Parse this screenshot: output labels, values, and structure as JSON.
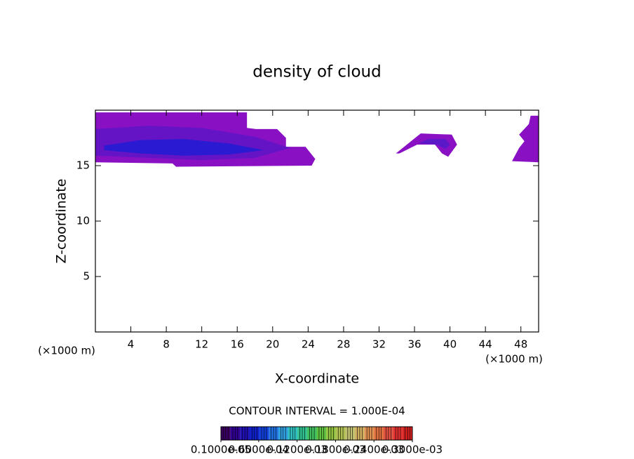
{
  "chart_data": {
    "type": "contour",
    "title": "density of cloud",
    "xlabel": "X-coordinate",
    "ylabel": "Z-coordinate",
    "xunit": "(×1000 m)",
    "yunit": "(×1000 m)",
    "xlim": [
      0,
      50
    ],
    "ylim": [
      0,
      20
    ],
    "xticks": [
      4,
      8,
      12,
      16,
      20,
      24,
      28,
      32,
      36,
      40,
      44,
      48
    ],
    "yticks": [
      5,
      10,
      15
    ],
    "regions": [
      {
        "color": "#8a10c4",
        "x": [
          0,
          17.1,
          17.1,
          18.1,
          20.5,
          21.5,
          21.5,
          23.7,
          24.8,
          24.4,
          9.1,
          8.7,
          0
        ],
        "z": [
          19.8,
          19.8,
          18.4,
          18.3,
          18.3,
          17.5,
          16.7,
          16.7,
          15.6,
          15,
          14.9,
          15.2,
          15.3
        ]
      },
      {
        "color": "#6414c4",
        "x": [
          0,
          6,
          12,
          18,
          22,
          18,
          12,
          6,
          0
        ],
        "z": [
          18.3,
          18.6,
          18.4,
          17.6,
          16.6,
          15.7,
          15.5,
          15.7,
          15.9
        ]
      },
      {
        "color": "#2a1ad2",
        "x": [
          1,
          5,
          10,
          15,
          19,
          15,
          10,
          5,
          1
        ],
        "z": [
          16.8,
          17.3,
          17.4,
          17,
          16.4,
          16,
          15.9,
          16.1,
          16.4
        ]
      },
      {
        "color": "#8a10c4",
        "x": [
          33.9,
          36.7,
          40.2,
          40.8,
          39.8,
          39.1,
          38.3,
          36.3,
          34.3
        ],
        "z": [
          16.1,
          17.9,
          17.8,
          16.9,
          15.8,
          16.1,
          16.9,
          16.9,
          16.1
        ]
      },
      {
        "color": "#5a18c8",
        "x": [
          35.5,
          37.5,
          39.5,
          40,
          39.5,
          38.5,
          36.5
        ],
        "z": [
          16.6,
          17.4,
          17.4,
          16.9,
          16.5,
          16.9,
          17
        ]
      },
      {
        "color": "#8a10c4",
        "x": [
          47.8,
          48.9,
          49.1,
          50,
          50,
          47,
          47.8,
          48.4
        ],
        "z": [
          17.8,
          18.75,
          19.5,
          19.5,
          15.3,
          15.4,
          16.6,
          17.2
        ]
      }
    ],
    "contour_interval": "CONTOUR INTERVAL = 1.000E-04",
    "colorbar": {
      "lim": [
        1e-06,
        0.0003
      ],
      "colors": [
        "#3a0060",
        "#300090",
        "#2010b0",
        "#1020c8",
        "#1040d8",
        "#2070e0",
        "#30a0e0",
        "#30c0c0",
        "#30c090",
        "#40c060",
        "#60c040",
        "#90c040",
        "#b0c050",
        "#c0c070",
        "#d0b060",
        "#e09050",
        "#e07040",
        "#e05040",
        "#e03030",
        "#d02020"
      ],
      "ticks": [
        {
          "value": 1e-06,
          "label": "0.1000e-05"
        },
        {
          "value": 6e-05,
          "label": "0.6000e-04"
        },
        {
          "value": 0.00012,
          "label": "0.1200e-03"
        },
        {
          "value": 0.00018,
          "label": "0.1800e-03"
        },
        {
          "value": 0.00024,
          "label": "0.2400e-03"
        },
        {
          "value": 0.0003,
          "label": "0.3000e-03"
        }
      ]
    }
  }
}
